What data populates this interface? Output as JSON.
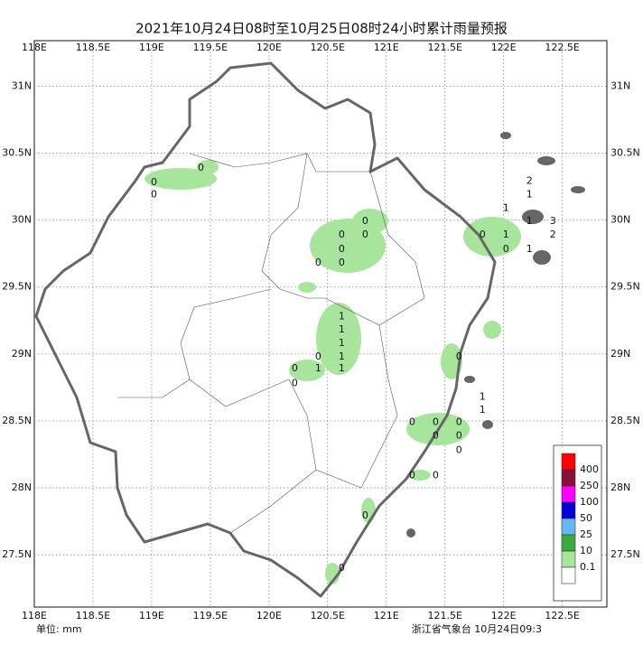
{
  "map": {
    "title": "2021年10月24日08时至10月25日08时24小时累计雨量预报",
    "xlim": [
      118,
      122.88
    ],
    "ylim": [
      27.11,
      31.34
    ],
    "xticks": [
      {
        "value": 118,
        "label": "118E"
      },
      {
        "value": 118.5,
        "label": "118.5E"
      },
      {
        "value": 119,
        "label": "119E"
      },
      {
        "value": 119.5,
        "label": "119.5E"
      },
      {
        "value": 120,
        "label": "120E"
      },
      {
        "value": 120.5,
        "label": "120.5E"
      },
      {
        "value": 121,
        "label": "121E"
      },
      {
        "value": 121.5,
        "label": "121.5E"
      },
      {
        "value": 122,
        "label": "122E"
      },
      {
        "value": 122.5,
        "label": "122.5E"
      }
    ],
    "yticks": [
      {
        "value": 31,
        "label": "31N"
      },
      {
        "value": 30.5,
        "label": "30.5N"
      },
      {
        "value": 30,
        "label": "30N"
      },
      {
        "value": 29.5,
        "label": "29.5N"
      },
      {
        "value": 29,
        "label": "29N"
      },
      {
        "value": 28.5,
        "label": "28.5N"
      },
      {
        "value": 28,
        "label": "28N"
      },
      {
        "value": 27.5,
        "label": "27.5N"
      }
    ],
    "stations": [
      {
        "lon": 119.02,
        "lat": 30.28,
        "value": 0
      },
      {
        "lon": 119.02,
        "lat": 30.19,
        "value": 0
      },
      {
        "lon": 119.42,
        "lat": 30.39,
        "value": 0
      },
      {
        "lon": 120.82,
        "lat": 29.99,
        "value": 0
      },
      {
        "lon": 120.82,
        "lat": 29.89,
        "value": 0
      },
      {
        "lon": 120.62,
        "lat": 29.89,
        "value": 0
      },
      {
        "lon": 120.62,
        "lat": 29.78,
        "value": 0
      },
      {
        "lon": 120.62,
        "lat": 29.68,
        "value": 0
      },
      {
        "lon": 120.42,
        "lat": 29.68,
        "value": 0
      },
      {
        "lon": 122.22,
        "lat": 30.29,
        "value": 2
      },
      {
        "lon": 122.22,
        "lat": 30.19,
        "value": 1
      },
      {
        "lon": 122.02,
        "lat": 30.09,
        "value": 1
      },
      {
        "lon": 122.22,
        "lat": 29.99,
        "value": 1
      },
      {
        "lon": 122.42,
        "lat": 29.99,
        "value": 3
      },
      {
        "lon": 122.42,
        "lat": 29.89,
        "value": 2
      },
      {
        "lon": 121.82,
        "lat": 29.89,
        "value": 0
      },
      {
        "lon": 122.02,
        "lat": 29.89,
        "value": 1
      },
      {
        "lon": 122.02,
        "lat": 29.78,
        "value": 0
      },
      {
        "lon": 122.22,
        "lat": 29.78,
        "value": 1
      },
      {
        "lon": 120.62,
        "lat": 29.28,
        "value": 1
      },
      {
        "lon": 120.62,
        "lat": 29.18,
        "value": 1
      },
      {
        "lon": 120.62,
        "lat": 29.08,
        "value": 1
      },
      {
        "lon": 120.62,
        "lat": 28.98,
        "value": 1
      },
      {
        "lon": 120.62,
        "lat": 28.89,
        "value": 1
      },
      {
        "lon": 120.42,
        "lat": 28.98,
        "value": 0
      },
      {
        "lon": 120.42,
        "lat": 28.89,
        "value": 1
      },
      {
        "lon": 120.22,
        "lat": 28.89,
        "value": 0
      },
      {
        "lon": 120.22,
        "lat": 28.78,
        "value": 0
      },
      {
        "lon": 121.62,
        "lat": 28.98,
        "value": 0
      },
      {
        "lon": 121.82,
        "lat": 28.68,
        "value": 1
      },
      {
        "lon": 121.82,
        "lat": 28.58,
        "value": 1
      },
      {
        "lon": 121.22,
        "lat": 28.49,
        "value": 0
      },
      {
        "lon": 121.42,
        "lat": 28.49,
        "value": 0
      },
      {
        "lon": 121.62,
        "lat": 28.49,
        "value": 0
      },
      {
        "lon": 121.42,
        "lat": 28.39,
        "value": 0
      },
      {
        "lon": 121.62,
        "lat": 28.39,
        "value": 0
      },
      {
        "lon": 121.62,
        "lat": 28.28,
        "value": 0
      },
      {
        "lon": 121.22,
        "lat": 28.09,
        "value": 0
      },
      {
        "lon": 121.42,
        "lat": 28.09,
        "value": 0
      },
      {
        "lon": 120.82,
        "lat": 27.79,
        "value": 0
      },
      {
        "lon": 120.62,
        "lat": 27.4,
        "value": 0
      }
    ],
    "legend": {
      "levels": [
        400,
        250,
        100,
        50,
        25,
        10,
        0.1
      ],
      "colors": [
        "#ff0000",
        "#8b0f3c",
        "#ff00ff",
        "#0000dd",
        "#62b8f0",
        "#3daa3d",
        "#a8e59c",
        "#ffffff"
      ]
    },
    "unit": "单位: mm",
    "footer": "浙江省气象台 10月24日09:3"
  }
}
